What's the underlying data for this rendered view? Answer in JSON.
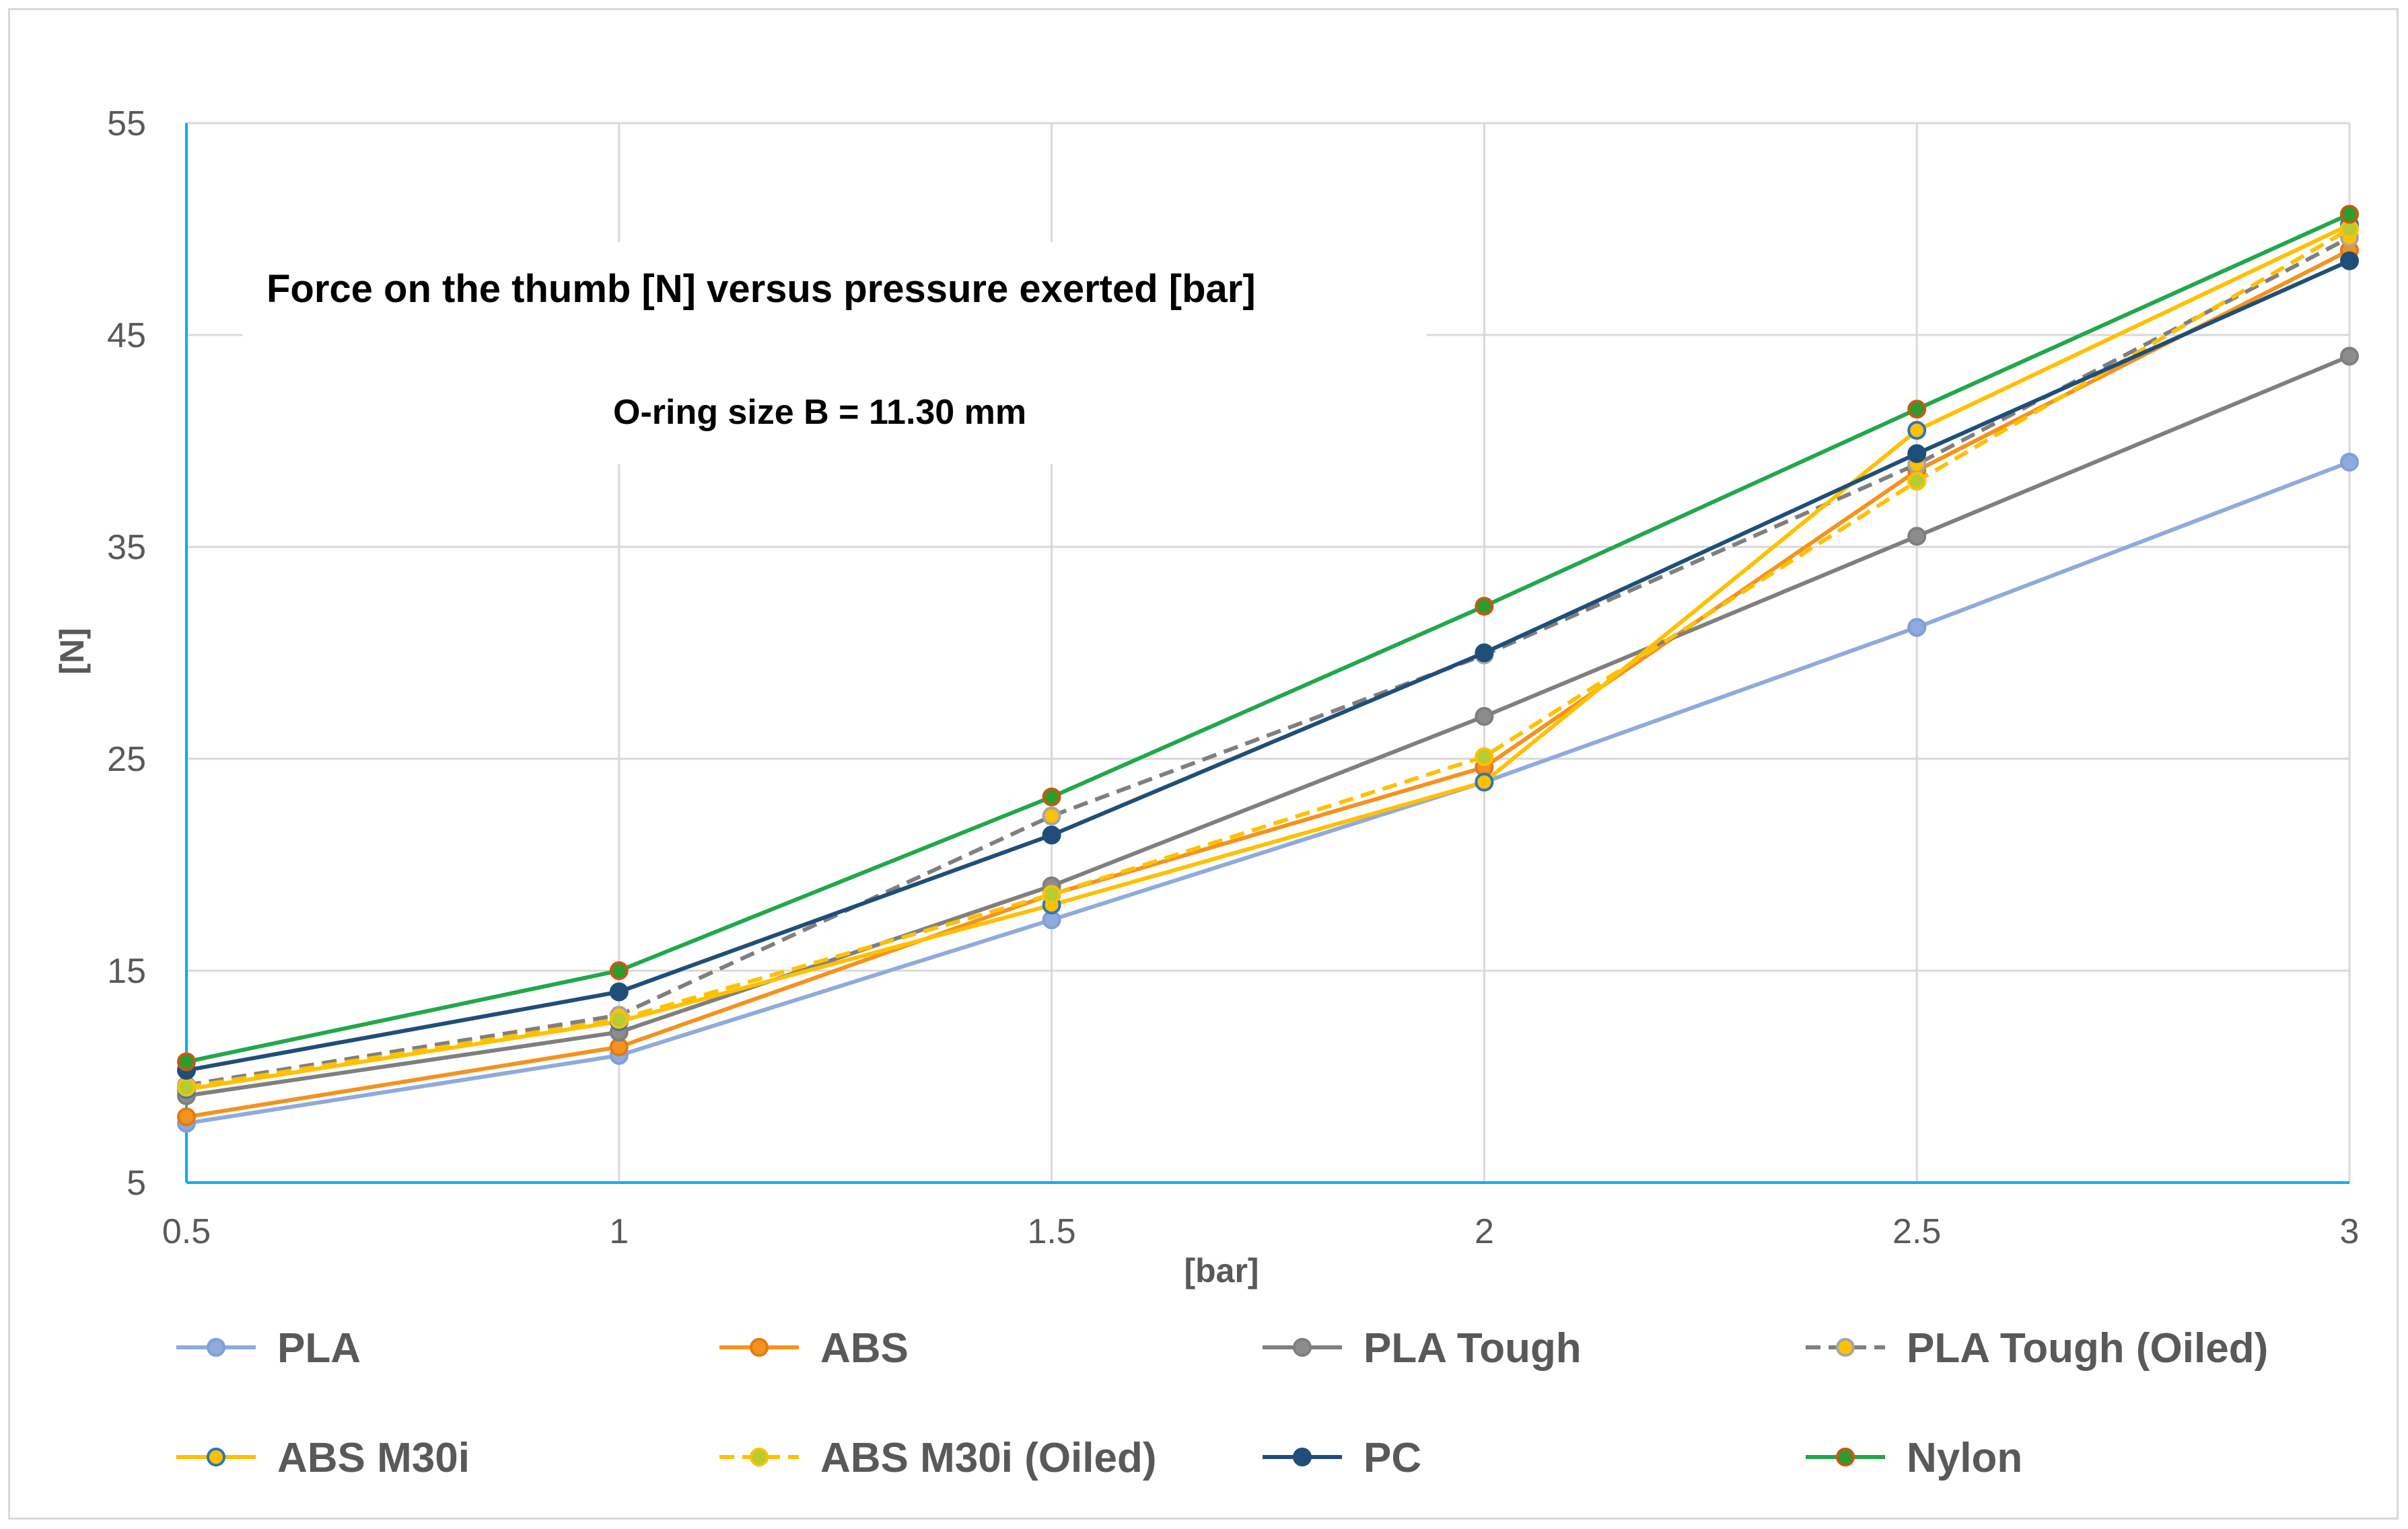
{
  "chart_data": {
    "type": "line",
    "title": "Force on the thumb [N] versus pressure exerted [bar]",
    "subtitle": "O-ring size B = 11.30 mm",
    "xlabel": "[bar]",
    "ylabel": "[N]",
    "x": [
      0.5,
      1,
      1.5,
      2,
      2.5,
      3
    ],
    "x_tick_labels": [
      "0.5",
      "1",
      "1.5",
      "2",
      "2.5",
      "3"
    ],
    "xlim": [
      0.5,
      3
    ],
    "ylim": [
      5,
      55
    ],
    "y_ticks": [
      5,
      15,
      25,
      35,
      45,
      55
    ],
    "y_tick_labels": [
      "5",
      "15",
      "25",
      "35",
      "45",
      "55"
    ],
    "grid": true,
    "legend_position": "bottom",
    "series": [
      {
        "name": "PLA",
        "values": [
          7.8,
          11.0,
          17.4,
          23.9,
          31.2,
          39.0
        ],
        "color": "#8faadc",
        "marker_fill": "#8faadc",
        "marker_edge": "#7f9fd8",
        "dashed": false
      },
      {
        "name": "ABS",
        "values": [
          8.1,
          11.4,
          18.6,
          24.6,
          38.6,
          49.0
        ],
        "color": "#f4921e",
        "marker_fill": "#f4921e",
        "marker_edge": "#e07b10",
        "dashed": false
      },
      {
        "name": "PLA Tough",
        "values": [
          9.1,
          12.1,
          19.0,
          27.0,
          35.5,
          44.0
        ],
        "color": "#7f7f7f",
        "marker_fill": "#8c8c8c",
        "marker_edge": "#7f7f7f",
        "dashed": false
      },
      {
        "name": "PLA Tough (Oiled)",
        "values": [
          9.6,
          12.9,
          22.3,
          29.9,
          38.9,
          49.6
        ],
        "color": "#7f7f7f",
        "marker_fill": "#ffc000",
        "marker_edge": "#a6a6a6",
        "dashed": true
      },
      {
        "name": "ABS M30i",
        "values": [
          9.4,
          12.6,
          18.1,
          23.9,
          40.5,
          50.2
        ],
        "color": "#ffc000",
        "marker_fill": "#ffc000",
        "marker_edge": "#2e75b6",
        "dashed": false
      },
      {
        "name": "ABS M30i (Oiled)",
        "values": [
          9.5,
          12.7,
          18.6,
          25.1,
          38.1,
          50.0
        ],
        "color": "#ffc000",
        "marker_fill": "#b5cc32",
        "marker_edge": "#ffc000",
        "dashed": true
      },
      {
        "name": "PC",
        "values": [
          10.3,
          14.0,
          21.4,
          30.0,
          39.4,
          48.5
        ],
        "color": "#1f4e79",
        "marker_fill": "#1f4e79",
        "marker_edge": "#1f4e79",
        "dashed": false
      },
      {
        "name": "Nylon",
        "values": [
          10.7,
          15.0,
          23.2,
          32.2,
          41.5,
          50.7
        ],
        "color": "#21a84a",
        "marker_fill": "#2e9b2e",
        "marker_edge": "#c55a11",
        "dashed": false
      }
    ]
  }
}
